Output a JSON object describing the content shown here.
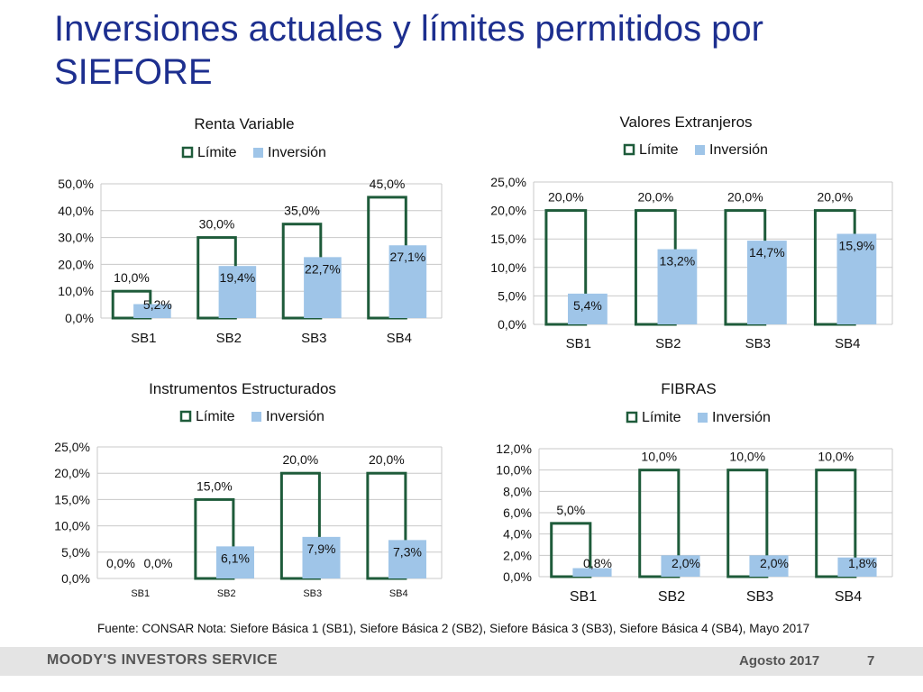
{
  "slide": {
    "title": "Inversiones actuales y límites permitidos por SIEFORE",
    "source_note": "Fuente: CONSAR Nota: Siefore Básica 1 (SB1), Siefore Básica 2 (SB2), Siefore Básica 3 (SB3), Siefore Básica 4 (SB4), Mayo 2017"
  },
  "footer": {
    "brand": "MOODY'S INVESTORS SERVICE",
    "date": "Agosto 2017",
    "page": "7"
  },
  "colors": {
    "title": "#1d2f8f",
    "limit_outline": "#1e5b3a",
    "investment_fill": "#9fc5e8",
    "grid": "#c8c8c8",
    "footer_bg": "#e4e4e4"
  },
  "chart_data": [
    {
      "type": "bar",
      "title": "Renta Variable",
      "categories": [
        "SB1",
        "SB2",
        "SB3",
        "SB4"
      ],
      "series": [
        {
          "name": "Límite",
          "values": [
            10.0,
            30.0,
            35.0,
            45.0
          ],
          "labels": [
            "10,0%",
            "30,0%",
            "35,0%",
            "45,0%"
          ]
        },
        {
          "name": "Inversión",
          "values": [
            5.2,
            19.4,
            22.7,
            27.1
          ],
          "labels": [
            "5,2%",
            "19,4%",
            "22,7%",
            "27,1%"
          ]
        }
      ],
      "yticks": [
        "0,0%",
        "10,0%",
        "20,0%",
        "30,0%",
        "40,0%",
        "50,0%"
      ],
      "ylim": [
        0,
        50
      ],
      "grid": true,
      "legend": "top"
    },
    {
      "type": "bar",
      "title": "Valores Extranjeros",
      "categories": [
        "SB1",
        "SB2",
        "SB3",
        "SB4"
      ],
      "series": [
        {
          "name": "Límite",
          "values": [
            20.0,
            20.0,
            20.0,
            20.0
          ],
          "labels": [
            "20,0%",
            "20,0%",
            "20,0%",
            "20,0%"
          ]
        },
        {
          "name": "Inversión",
          "values": [
            5.4,
            13.2,
            14.7,
            15.9
          ],
          "labels": [
            "5,4%",
            "13,2%",
            "14,7%",
            "15,9%"
          ]
        }
      ],
      "yticks": [
        "0,0%",
        "5,0%",
        "10,0%",
        "15,0%",
        "20,0%",
        "25,0%"
      ],
      "ylim": [
        0,
        25
      ],
      "grid": true,
      "legend": "top"
    },
    {
      "type": "bar",
      "title": "Instrumentos Estructurados",
      "categories": [
        "SB1",
        "SB2",
        "SB3",
        "SB4"
      ],
      "series": [
        {
          "name": "Límite",
          "values": [
            0.0,
            15.0,
            20.0,
            20.0
          ],
          "labels": [
            "0,0%",
            "15,0%",
            "20,0%",
            "20,0%"
          ]
        },
        {
          "name": "Inversión",
          "values": [
            0.0,
            6.1,
            7.9,
            7.3
          ],
          "labels": [
            "0,0%",
            "6,1%",
            "7,9%",
            "7,3%"
          ]
        }
      ],
      "yticks": [
        "0,0%",
        "5,0%",
        "10,0%",
        "15,0%",
        "20,0%",
        "25,0%"
      ],
      "ylim": [
        0,
        25
      ],
      "grid": true,
      "legend": "top"
    },
    {
      "type": "bar",
      "title": "FIBRAS",
      "categories": [
        "SB1",
        "SB2",
        "SB3",
        "SB4"
      ],
      "series": [
        {
          "name": "Límite",
          "values": [
            5.0,
            10.0,
            10.0,
            10.0
          ],
          "labels": [
            "5,0%",
            "10,0%",
            "10,0%",
            "10,0%"
          ]
        },
        {
          "name": "Inversión",
          "values": [
            0.8,
            2.0,
            2.0,
            1.8
          ],
          "labels": [
            "0,8%",
            "2,0%",
            "2,0%",
            "1,8%"
          ]
        }
      ],
      "yticks": [
        "0,0%",
        "2,0%",
        "4,0%",
        "6,0%",
        "8,0%",
        "10,0%",
        "12,0%"
      ],
      "ylim": [
        0,
        12
      ],
      "grid": true,
      "legend": "top"
    }
  ]
}
